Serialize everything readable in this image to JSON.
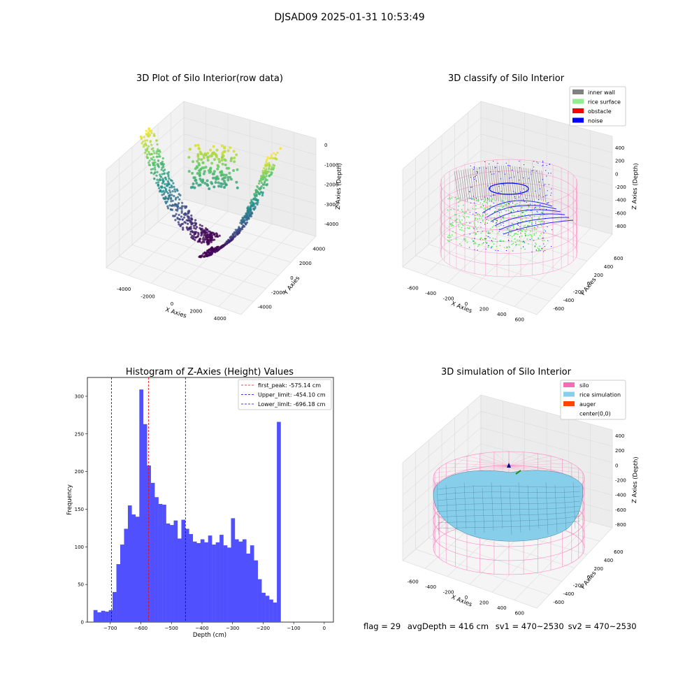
{
  "figure": {
    "title": "DJSAD09 2025-01-31 10:53:49",
    "footer": {
      "flag": "flag = 29",
      "avg_depth": "avgDepth = 416 cm",
      "sv1": "sv1 = 470~2530",
      "sv2": "sv2 = 470~2530"
    }
  },
  "colors": {
    "inner_wall": "#808080",
    "rice_surface": "#90ee90",
    "obstacle": "#ff0000",
    "noise": "#0000ff",
    "silo": "#ff69b4",
    "rice_simulation": "#87ceeb",
    "auger": "#ff4500",
    "histogram_bar": "#5050ff",
    "first_peak_line": "#ff0000",
    "limit_lines": "#0000cc"
  },
  "chart_data": [
    {
      "type": "scatter",
      "subtype": "scatter3d",
      "title": "3D Plot of Silo Interior(row data)",
      "xlabel": "X Axies",
      "ylabel": "Y Axies",
      "zlabel": "Z Axies (Depth)",
      "xticks": [
        "-4000",
        "-2000",
        "0",
        "2000",
        "4000"
      ],
      "yticks": [
        "-4000",
        "-2000",
        "0",
        "2000",
        "4000"
      ],
      "zticks": [
        "0",
        "-1000",
        "-2000",
        "-3000",
        "-4000"
      ],
      "xlim": [
        -4500,
        4500
      ],
      "ylim": [
        -4500,
        4500
      ],
      "zlim": [
        -4500,
        500
      ],
      "colormap": "viridis",
      "description": "two parabolic walls of points meeting near z=-4000 plus a shallow cluster near z=-500"
    },
    {
      "type": "scatter",
      "subtype": "scatter3d",
      "title": "3D classify of Silo Interior",
      "xlabel": "X Axies",
      "ylabel": "Y Axies",
      "zlabel": "Z Axies (Depth)",
      "xticks": [
        "-600",
        "-400",
        "-200",
        "0",
        "200",
        "400",
        "600"
      ],
      "yticks": [
        "-600",
        "-400",
        "-200",
        "0",
        "200",
        "400",
        "600"
      ],
      "zticks": [
        "400",
        "200",
        "0",
        "-200",
        "-400",
        "-600",
        "-800"
      ],
      "legend": [
        {
          "label": "inner wall",
          "color": "#808080"
        },
        {
          "label": "rice surface",
          "color": "#90ee90"
        },
        {
          "label": "obstacle",
          "color": "#ff0000"
        },
        {
          "label": "noise",
          "color": "#0000ff"
        }
      ],
      "legend_position": "top-right"
    },
    {
      "type": "bar",
      "subtype": "histogram",
      "title": "Histogram of Z-Axies (Height) Values",
      "xlabel": "Depth (cm)",
      "ylabel": "Frequency",
      "xlim": [
        -775,
        30
      ],
      "ylim": [
        0,
        325
      ],
      "xticks": [
        "-700",
        "-600",
        "-500",
        "-400",
        "-300",
        "-200",
        "-100",
        "0"
      ],
      "yticks": [
        "0",
        "50",
        "100",
        "150",
        "200",
        "250",
        "300"
      ],
      "bin_start": -755,
      "bin_width": 12.5,
      "values": [
        16,
        13,
        15,
        14,
        16,
        40,
        77,
        103,
        124,
        155,
        143,
        140,
        309,
        263,
        208,
        185,
        166,
        157,
        156,
        131,
        129,
        135,
        111,
        136,
        124,
        117,
        107,
        105,
        110,
        106,
        115,
        103,
        106,
        116,
        102,
        99,
        138,
        110,
        107,
        110,
        91,
        102,
        82,
        57,
        39,
        35,
        30,
        26,
        266
      ],
      "vlines": [
        {
          "label": "first_peak: -575.14 cm",
          "x": -575.14,
          "color": "#ff0000"
        },
        {
          "label": "Upper_limit: -454.10 cm",
          "x": -454.1,
          "color": "#0000cc"
        },
        {
          "label": "Lower_limit: -696.18 cm",
          "x": -696.18,
          "color": "#0000cc"
        }
      ],
      "legend_position": "top-right"
    },
    {
      "type": "area",
      "subtype": "surface3d",
      "title": "3D simulation of Silo Interior",
      "xlabel": "X Axies",
      "ylabel": "Y Axies",
      "zlabel": "Z Axies (Depth)",
      "xticks": [
        "-600",
        "-400",
        "-200",
        "0",
        "200",
        "400",
        "600"
      ],
      "yticks": [
        "-600",
        "-400",
        "-200",
        "0",
        "200",
        "400",
        "600"
      ],
      "zticks": [
        "400",
        "200",
        "0",
        "-200",
        "-400",
        "-600",
        "-800"
      ],
      "legend": [
        {
          "label": "silo",
          "color": "#ff69b4"
        },
        {
          "label": "rice simulation",
          "color": "#87ceeb"
        },
        {
          "label": "auger",
          "color": "#ff4500"
        },
        {
          "label": "center(0,0)",
          "color": "none"
        }
      ],
      "legend_position": "top-right"
    }
  ]
}
